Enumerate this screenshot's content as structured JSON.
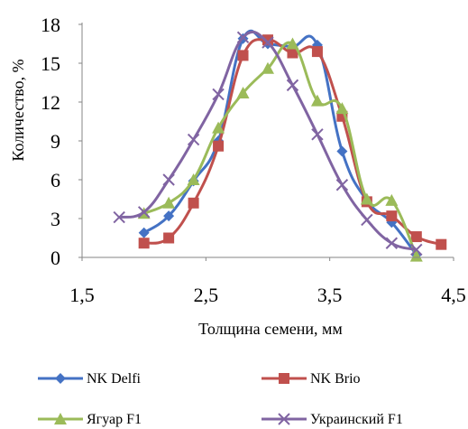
{
  "chart_data": {
    "type": "line",
    "title": "",
    "xlabel": "Толщина  семени, мм",
    "ylabel": "Количество, %",
    "xlim": [
      1.5,
      4.5
    ],
    "ylim": [
      0,
      18
    ],
    "x_ticks": [
      "1,5",
      "2,5",
      "3,5",
      "4,5"
    ],
    "x_tick_values": [
      1.5,
      2.5,
      3.5,
      4.5
    ],
    "y_ticks": [
      "0",
      "3",
      "6",
      "9",
      "12",
      "15",
      "18"
    ],
    "y_tick_values": [
      0,
      3,
      6,
      9,
      12,
      15,
      18
    ],
    "grid": false,
    "smooth": true,
    "legend_position": "bottom",
    "series": [
      {
        "name": "NK Delfi",
        "color": "#4472C4",
        "marker": "diamond",
        "points": [
          [
            2.0,
            1.9
          ],
          [
            2.2,
            3.2
          ],
          [
            2.4,
            5.9
          ],
          [
            2.6,
            9.0
          ],
          [
            2.8,
            16.9
          ],
          [
            3.0,
            16.5
          ],
          [
            3.2,
            16.3
          ],
          [
            3.4,
            16.4
          ],
          [
            3.6,
            8.2
          ],
          [
            3.8,
            4.4
          ],
          [
            4.0,
            2.7
          ],
          [
            4.2,
            0.2
          ]
        ]
      },
      {
        "name": "NK Brio",
        "color": "#C0504D",
        "marker": "square",
        "points": [
          [
            2.0,
            1.1
          ],
          [
            2.2,
            1.5
          ],
          [
            2.4,
            4.2
          ],
          [
            2.6,
            8.6
          ],
          [
            2.8,
            15.6
          ],
          [
            3.0,
            16.8
          ],
          [
            3.2,
            15.8
          ],
          [
            3.4,
            15.9
          ],
          [
            3.6,
            10.9
          ],
          [
            3.8,
            4.3
          ],
          [
            4.0,
            3.2
          ],
          [
            4.2,
            1.6
          ],
          [
            4.4,
            1.0
          ]
        ]
      },
      {
        "name": "Ягуар F1",
        "color": "#9BBB59",
        "marker": "triangle",
        "points": [
          [
            2.0,
            3.4
          ],
          [
            2.2,
            4.2
          ],
          [
            2.4,
            6.0
          ],
          [
            2.6,
            10.0
          ],
          [
            2.8,
            12.7
          ],
          [
            3.0,
            14.6
          ],
          [
            3.2,
            16.5
          ],
          [
            3.4,
            12.1
          ],
          [
            3.6,
            11.5
          ],
          [
            3.8,
            4.5
          ],
          [
            4.0,
            4.4
          ],
          [
            4.2,
            0.1
          ]
        ]
      },
      {
        "name": "Украинский F1",
        "color": "#8064A2",
        "marker": "x",
        "points": [
          [
            1.8,
            3.1
          ],
          [
            2.0,
            3.5
          ],
          [
            2.2,
            6.0
          ],
          [
            2.4,
            9.1
          ],
          [
            2.6,
            12.6
          ],
          [
            2.8,
            17.0
          ],
          [
            3.0,
            16.6
          ],
          [
            3.2,
            13.3
          ],
          [
            3.4,
            9.5
          ],
          [
            3.6,
            5.6
          ],
          [
            3.8,
            2.9
          ],
          [
            4.0,
            1.1
          ],
          [
            4.2,
            0.6
          ]
        ]
      }
    ]
  }
}
